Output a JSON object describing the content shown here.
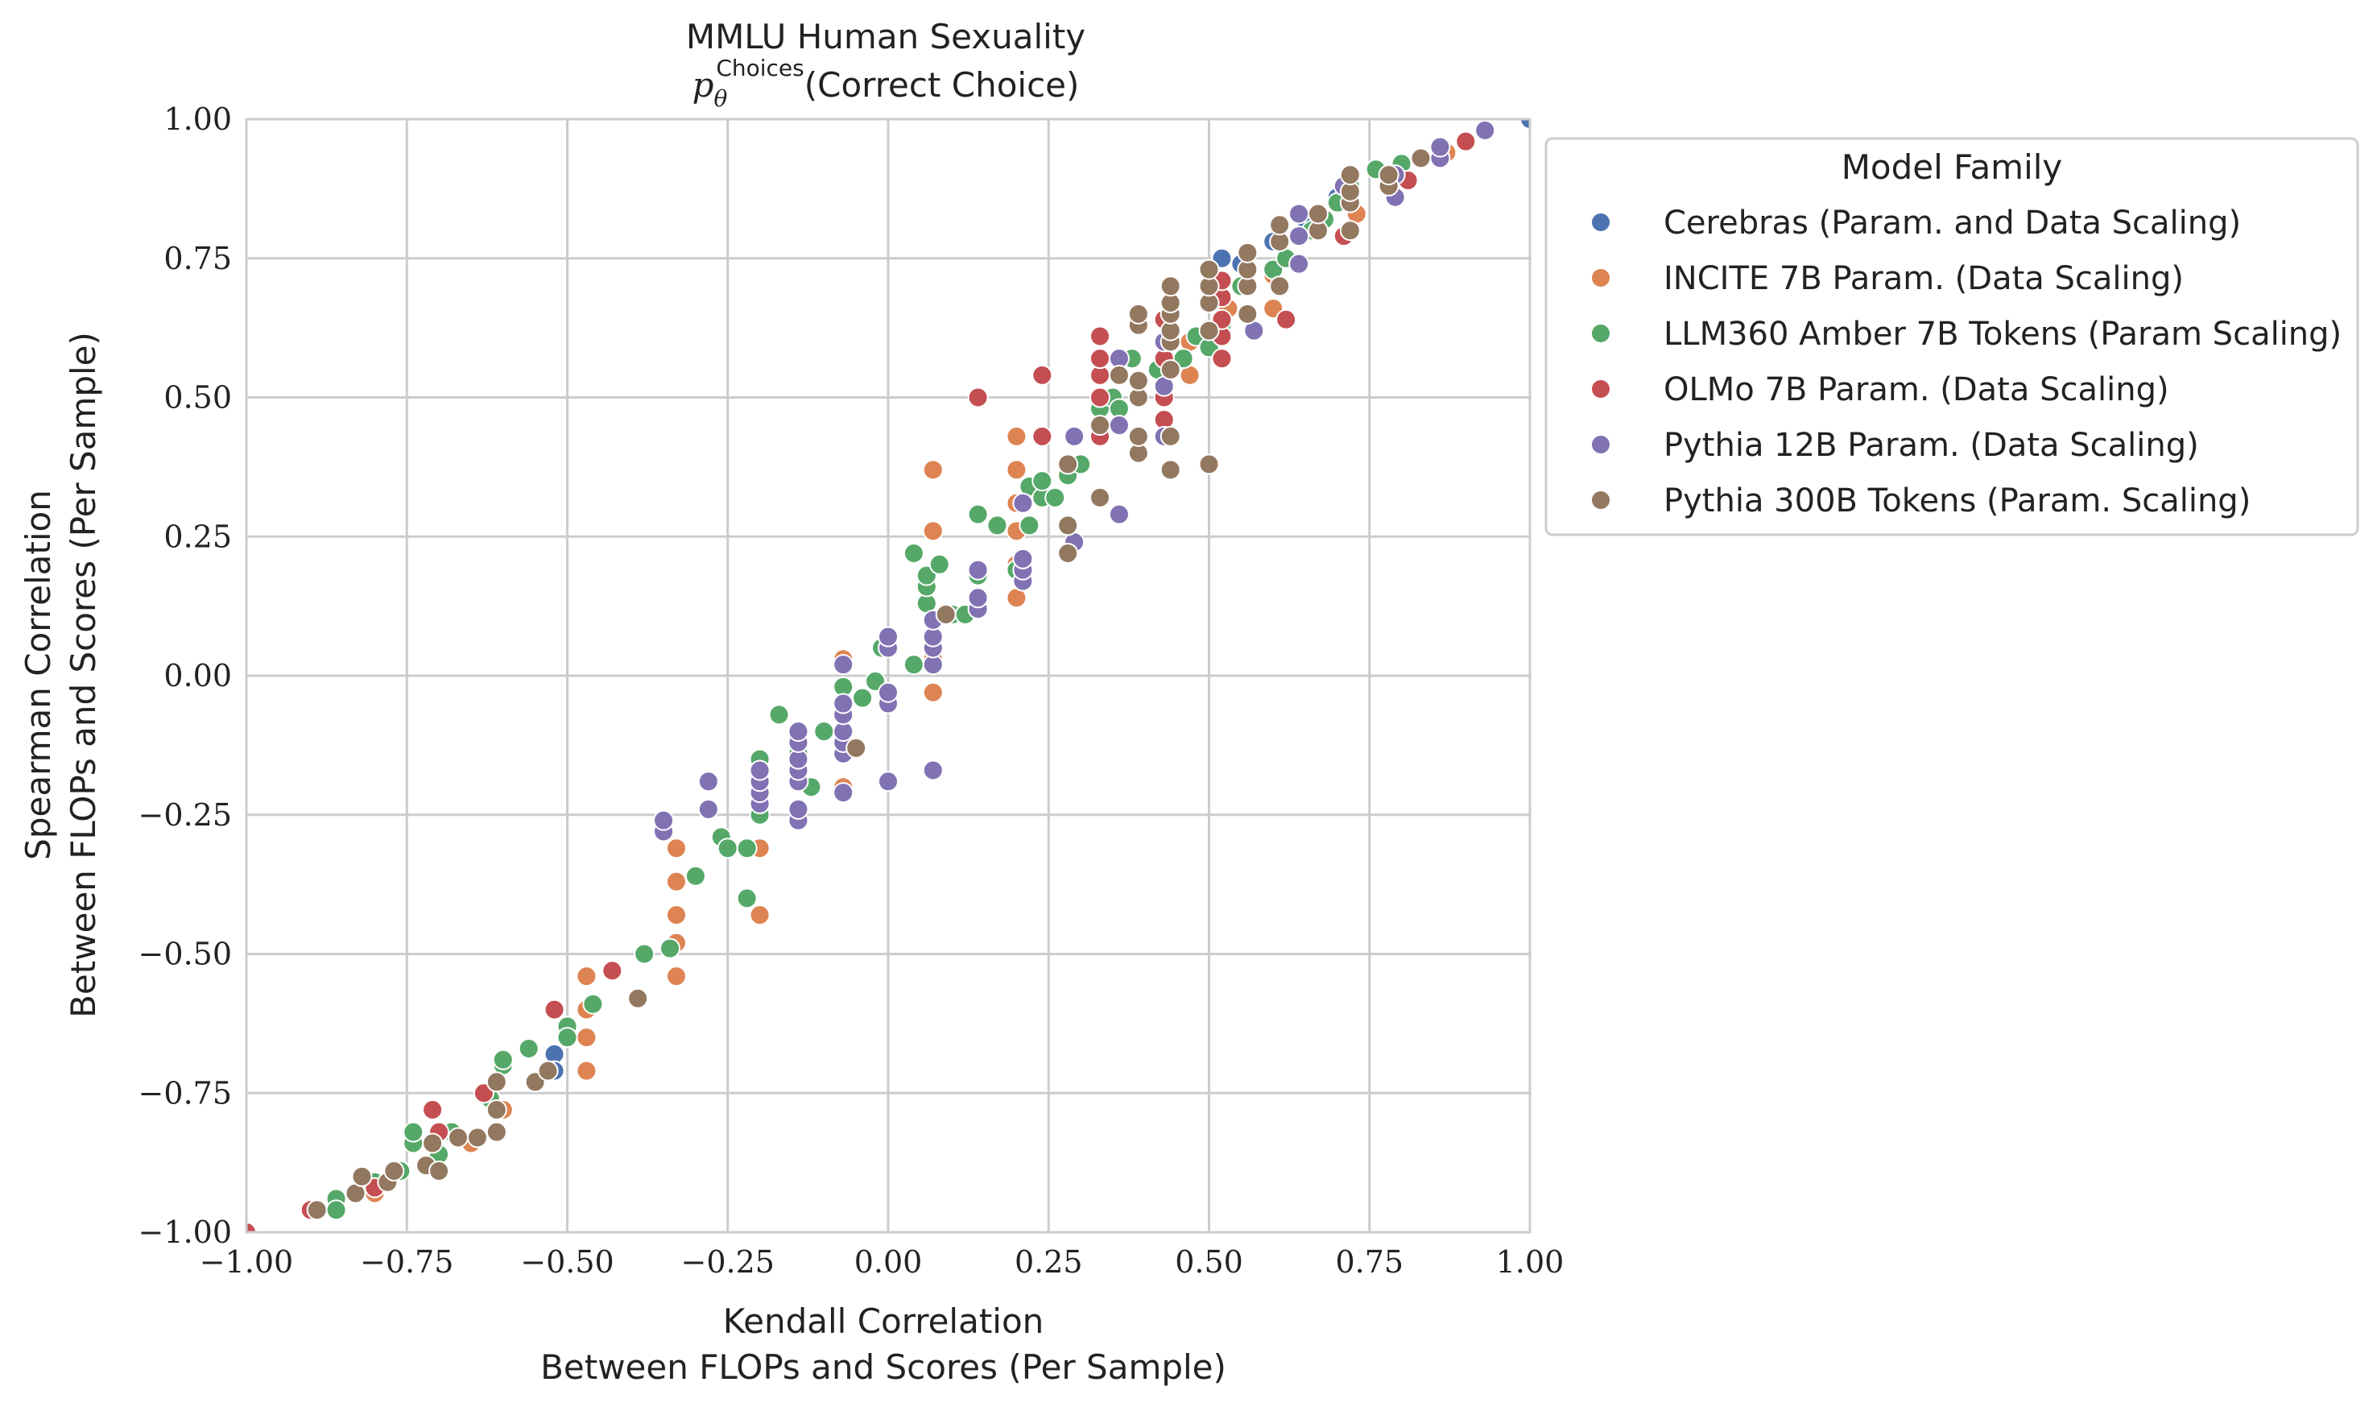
{
  "chart_data": {
    "type": "scatter",
    "title": "MMLU Human Sexuality",
    "subtitle_main": "p",
    "subtitle_sub": "θ",
    "subtitle_sup": "Choices",
    "subtitle_rest": "(Correct Choice)",
    "xlabel_line1": "Kendall Correlation",
    "xlabel_line2": "Between FLOPs and Scores (Per Sample)",
    "ylabel_line1": "Spearman Correlation",
    "ylabel_line2": "Between FLOPs and Scores (Per Sample)",
    "xlim": [
      -1.0,
      1.0
    ],
    "ylim": [
      -1.0,
      1.0
    ],
    "x_ticks": [
      "−1.00",
      "−0.75",
      "−0.50",
      "−0.25",
      "0.00",
      "0.25",
      "0.50",
      "0.75",
      "1.00"
    ],
    "y_ticks": [
      "−1.00",
      "−0.75",
      "−0.50",
      "−0.25",
      "0.00",
      "0.25",
      "0.50",
      "0.75",
      "1.00"
    ],
    "x_tick_values": [
      -1.0,
      -0.75,
      -0.5,
      -0.25,
      0.0,
      0.25,
      0.5,
      0.75,
      1.0
    ],
    "y_tick_values": [
      -1.0,
      -0.75,
      -0.5,
      -0.25,
      0.0,
      0.25,
      0.5,
      0.75,
      1.0
    ],
    "grid": true,
    "legend_title": "Model Family",
    "legend_position": "outside-right",
    "series": [
      {
        "name": "Cerebras (Param. and Data Scaling)",
        "color": "#4c72b0",
        "points": [
          [
            -0.52,
            -0.68
          ],
          [
            -0.52,
            -0.71
          ],
          [
            0.52,
            0.75
          ],
          [
            0.55,
            0.74
          ],
          [
            0.6,
            0.78
          ],
          [
            0.65,
            0.82
          ],
          [
            0.7,
            0.86
          ],
          [
            0.78,
            0.9
          ],
          [
            1.0,
            1.0
          ]
        ]
      },
      {
        "name": "INCITE 7B Param. (Data Scaling)",
        "color": "#dd8452",
        "points": [
          [
            -0.89,
            -0.96
          ],
          [
            -0.8,
            -0.93
          ],
          [
            -0.72,
            -0.88
          ],
          [
            -0.65,
            -0.84
          ],
          [
            -0.6,
            -0.78
          ],
          [
            -0.53,
            -0.71
          ],
          [
            -0.47,
            -0.71
          ],
          [
            -0.47,
            -0.65
          ],
          [
            -0.47,
            -0.6
          ],
          [
            -0.47,
            -0.54
          ],
          [
            -0.33,
            -0.54
          ],
          [
            -0.33,
            -0.48
          ],
          [
            -0.33,
            -0.43
          ],
          [
            -0.33,
            -0.37
          ],
          [
            -0.33,
            -0.31
          ],
          [
            -0.2,
            -0.43
          ],
          [
            -0.2,
            -0.31
          ],
          [
            -0.07,
            -0.2
          ],
          [
            -0.07,
            0.03
          ],
          [
            0.07,
            -0.03
          ],
          [
            0.07,
            0.03
          ],
          [
            0.07,
            0.26
          ],
          [
            0.07,
            0.37
          ],
          [
            0.2,
            0.14
          ],
          [
            0.2,
            0.2
          ],
          [
            0.2,
            0.26
          ],
          [
            0.2,
            0.31
          ],
          [
            0.2,
            0.37
          ],
          [
            0.2,
            0.43
          ],
          [
            0.33,
            0.43
          ],
          [
            0.33,
            0.54
          ],
          [
            0.47,
            0.54
          ],
          [
            0.47,
            0.6
          ],
          [
            0.53,
            0.66
          ],
          [
            0.6,
            0.66
          ],
          [
            0.6,
            0.72
          ],
          [
            0.73,
            0.83
          ],
          [
            0.87,
            0.94
          ]
        ]
      },
      {
        "name": "LLM360 Amber 7B Tokens (Param Scaling)",
        "color": "#55a868",
        "points": [
          [
            -0.86,
            -0.94
          ],
          [
            -0.86,
            -0.96
          ],
          [
            -0.8,
            -0.91
          ],
          [
            -0.76,
            -0.89
          ],
          [
            -0.74,
            -0.84
          ],
          [
            -0.74,
            -0.82
          ],
          [
            -0.7,
            -0.86
          ],
          [
            -0.68,
            -0.82
          ],
          [
            -0.62,
            -0.76
          ],
          [
            -0.6,
            -0.7
          ],
          [
            -0.6,
            -0.69
          ],
          [
            -0.56,
            -0.67
          ],
          [
            -0.5,
            -0.63
          ],
          [
            -0.5,
            -0.65
          ],
          [
            -0.46,
            -0.59
          ],
          [
            -0.38,
            -0.5
          ],
          [
            -0.34,
            -0.49
          ],
          [
            -0.3,
            -0.36
          ],
          [
            -0.26,
            -0.29
          ],
          [
            -0.25,
            -0.31
          ],
          [
            -0.22,
            -0.31
          ],
          [
            -0.22,
            -0.4
          ],
          [
            -0.2,
            -0.25
          ],
          [
            -0.2,
            -0.15
          ],
          [
            -0.17,
            -0.07
          ],
          [
            -0.14,
            -0.14
          ],
          [
            -0.12,
            -0.2
          ],
          [
            -0.1,
            -0.1
          ],
          [
            -0.07,
            -0.02
          ],
          [
            -0.07,
            -0.06
          ],
          [
            -0.04,
            -0.04
          ],
          [
            -0.02,
            -0.01
          ],
          [
            -0.01,
            0.05
          ],
          [
            0.04,
            0.02
          ],
          [
            0.04,
            0.22
          ],
          [
            0.06,
            0.13
          ],
          [
            0.06,
            0.16
          ],
          [
            0.06,
            0.18
          ],
          [
            0.08,
            0.2
          ],
          [
            0.1,
            0.11
          ],
          [
            0.12,
            0.11
          ],
          [
            0.14,
            0.18
          ],
          [
            0.14,
            0.29
          ],
          [
            0.17,
            0.27
          ],
          [
            0.2,
            0.19
          ],
          [
            0.22,
            0.34
          ],
          [
            0.22,
            0.27
          ],
          [
            0.24,
            0.32
          ],
          [
            0.24,
            0.35
          ],
          [
            0.26,
            0.32
          ],
          [
            0.28,
            0.36
          ],
          [
            0.3,
            0.38
          ],
          [
            0.33,
            0.48
          ],
          [
            0.35,
            0.5
          ],
          [
            0.36,
            0.48
          ],
          [
            0.38,
            0.57
          ],
          [
            0.42,
            0.55
          ],
          [
            0.46,
            0.57
          ],
          [
            0.48,
            0.61
          ],
          [
            0.5,
            0.59
          ],
          [
            0.52,
            0.63
          ],
          [
            0.55,
            0.7
          ],
          [
            0.6,
            0.73
          ],
          [
            0.62,
            0.75
          ],
          [
            0.66,
            0.8
          ],
          [
            0.68,
            0.82
          ],
          [
            0.7,
            0.85
          ],
          [
            0.72,
            0.88
          ],
          [
            0.76,
            0.91
          ],
          [
            0.8,
            0.92
          ]
        ]
      },
      {
        "name": "OLMo 7B Param. (Data Scaling)",
        "color": "#c44e52",
        "points": [
          [
            -1.0,
            -1.0
          ],
          [
            -0.9,
            -0.96
          ],
          [
            -0.8,
            -0.92
          ],
          [
            -0.71,
            -0.78
          ],
          [
            -0.7,
            -0.82
          ],
          [
            -0.63,
            -0.75
          ],
          [
            -0.52,
            -0.6
          ],
          [
            -0.43,
            -0.53
          ],
          [
            0.14,
            0.5
          ],
          [
            0.24,
            0.43
          ],
          [
            0.24,
            0.54
          ],
          [
            0.33,
            0.43
          ],
          [
            0.33,
            0.5
          ],
          [
            0.33,
            0.54
          ],
          [
            0.33,
            0.57
          ],
          [
            0.33,
            0.61
          ],
          [
            0.43,
            0.46
          ],
          [
            0.43,
            0.5
          ],
          [
            0.43,
            0.57
          ],
          [
            0.43,
            0.64
          ],
          [
            0.52,
            0.57
          ],
          [
            0.52,
            0.61
          ],
          [
            0.52,
            0.64
          ],
          [
            0.52,
            0.68
          ],
          [
            0.52,
            0.71
          ],
          [
            0.62,
            0.64
          ],
          [
            0.71,
            0.79
          ],
          [
            0.81,
            0.89
          ],
          [
            0.9,
            0.96
          ]
        ]
      },
      {
        "name": "Pythia 12B Param. (Data Scaling)",
        "color": "#8172b3",
        "points": [
          [
            -0.35,
            -0.28
          ],
          [
            -0.35,
            -0.26
          ],
          [
            -0.28,
            -0.24
          ],
          [
            -0.28,
            -0.19
          ],
          [
            -0.2,
            -0.23
          ],
          [
            -0.2,
            -0.21
          ],
          [
            -0.2,
            -0.19
          ],
          [
            -0.2,
            -0.17
          ],
          [
            -0.14,
            -0.26
          ],
          [
            -0.14,
            -0.24
          ],
          [
            -0.14,
            -0.19
          ],
          [
            -0.14,
            -0.17
          ],
          [
            -0.14,
            -0.15
          ],
          [
            -0.14,
            -0.12
          ],
          [
            -0.14,
            -0.1
          ],
          [
            -0.07,
            -0.21
          ],
          [
            -0.07,
            -0.14
          ],
          [
            -0.07,
            -0.12
          ],
          [
            -0.07,
            -0.1
          ],
          [
            -0.07,
            -0.07
          ],
          [
            -0.07,
            -0.05
          ],
          [
            -0.07,
            0.02
          ],
          [
            0.0,
            -0.19
          ],
          [
            0.0,
            -0.05
          ],
          [
            0.0,
            -0.03
          ],
          [
            0.0,
            0.05
          ],
          [
            0.0,
            0.07
          ],
          [
            0.07,
            -0.17
          ],
          [
            0.07,
            0.02
          ],
          [
            0.07,
            0.05
          ],
          [
            0.07,
            0.07
          ],
          [
            0.07,
            0.1
          ],
          [
            0.14,
            0.12
          ],
          [
            0.14,
            0.14
          ],
          [
            0.14,
            0.19
          ],
          [
            0.21,
            0.17
          ],
          [
            0.21,
            0.19
          ],
          [
            0.21,
            0.21
          ],
          [
            0.21,
            0.31
          ],
          [
            0.29,
            0.24
          ],
          [
            0.29,
            0.43
          ],
          [
            0.36,
            0.29
          ],
          [
            0.36,
            0.45
          ],
          [
            0.36,
            0.57
          ],
          [
            0.43,
            0.43
          ],
          [
            0.43,
            0.52
          ],
          [
            0.43,
            0.6
          ],
          [
            0.57,
            0.62
          ],
          [
            0.64,
            0.74
          ],
          [
            0.64,
            0.79
          ],
          [
            0.64,
            0.83
          ],
          [
            0.71,
            0.88
          ],
          [
            0.79,
            0.86
          ],
          [
            0.79,
            0.9
          ],
          [
            0.86,
            0.93
          ],
          [
            0.86,
            0.95
          ],
          [
            0.93,
            0.98
          ]
        ]
      },
      {
        "name": "Pythia 300B Tokens (Param. Scaling)",
        "color": "#937860",
        "points": [
          [
            -0.89,
            -0.96
          ],
          [
            -0.83,
            -0.93
          ],
          [
            -0.82,
            -0.9
          ],
          [
            -0.78,
            -0.91
          ],
          [
            -0.77,
            -0.89
          ],
          [
            -0.72,
            -0.88
          ],
          [
            -0.71,
            -0.84
          ],
          [
            -0.7,
            -0.89
          ],
          [
            -0.67,
            -0.83
          ],
          [
            -0.64,
            -0.83
          ],
          [
            -0.61,
            -0.82
          ],
          [
            -0.61,
            -0.78
          ],
          [
            -0.61,
            -0.73
          ],
          [
            -0.55,
            -0.73
          ],
          [
            -0.53,
            -0.71
          ],
          [
            -0.39,
            -0.58
          ],
          [
            -0.05,
            -0.13
          ],
          [
            0.09,
            0.11
          ],
          [
            0.28,
            0.22
          ],
          [
            0.28,
            0.27
          ],
          [
            0.28,
            0.38
          ],
          [
            0.33,
            0.32
          ],
          [
            0.33,
            0.45
          ],
          [
            0.36,
            0.54
          ],
          [
            0.39,
            0.4
          ],
          [
            0.39,
            0.43
          ],
          [
            0.39,
            0.5
          ],
          [
            0.39,
            0.53
          ],
          [
            0.39,
            0.63
          ],
          [
            0.39,
            0.65
          ],
          [
            0.44,
            0.37
          ],
          [
            0.44,
            0.43
          ],
          [
            0.44,
            0.55
          ],
          [
            0.44,
            0.6
          ],
          [
            0.44,
            0.62
          ],
          [
            0.44,
            0.65
          ],
          [
            0.44,
            0.67
          ],
          [
            0.44,
            0.7
          ],
          [
            0.5,
            0.38
          ],
          [
            0.5,
            0.62
          ],
          [
            0.5,
            0.67
          ],
          [
            0.5,
            0.7
          ],
          [
            0.5,
            0.73
          ],
          [
            0.56,
            0.65
          ],
          [
            0.56,
            0.7
          ],
          [
            0.56,
            0.73
          ],
          [
            0.56,
            0.76
          ],
          [
            0.61,
            0.7
          ],
          [
            0.61,
            0.78
          ],
          [
            0.61,
            0.81
          ],
          [
            0.67,
            0.8
          ],
          [
            0.67,
            0.83
          ],
          [
            0.72,
            0.8
          ],
          [
            0.72,
            0.85
          ],
          [
            0.72,
            0.87
          ],
          [
            0.72,
            0.9
          ],
          [
            0.78,
            0.88
          ],
          [
            0.78,
            0.9
          ],
          [
            0.83,
            0.93
          ]
        ]
      }
    ]
  }
}
